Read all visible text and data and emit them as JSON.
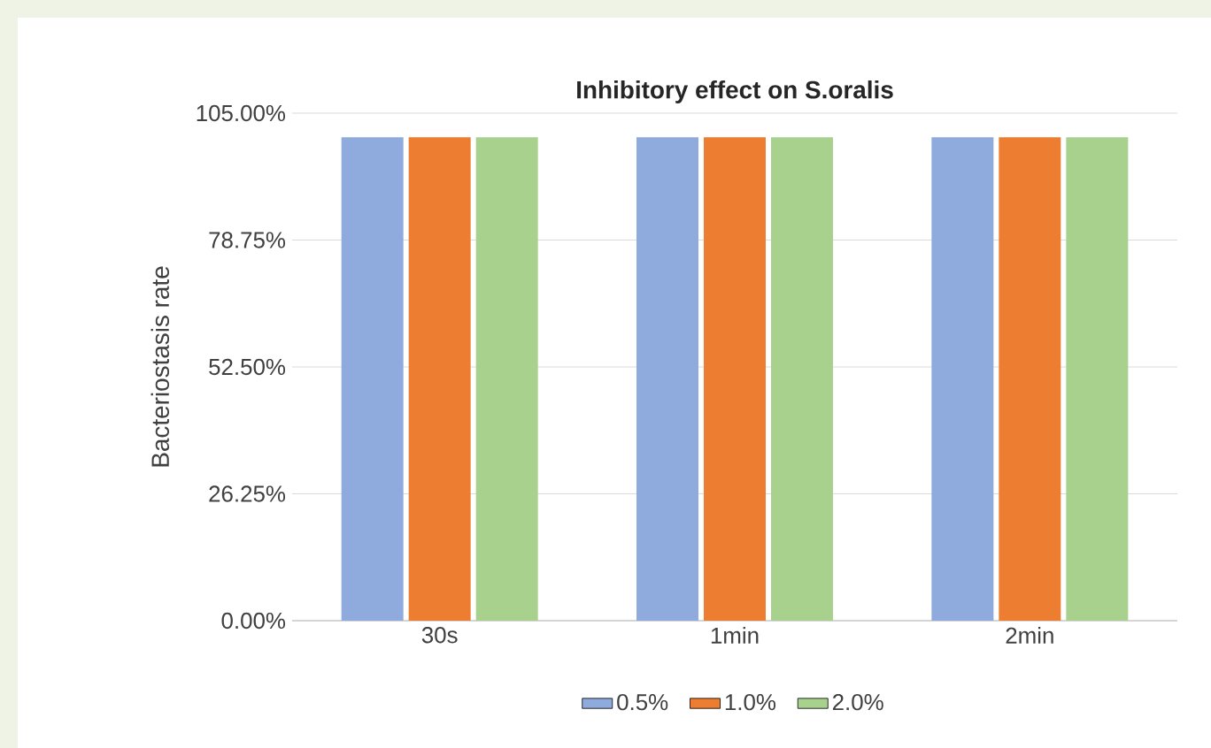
{
  "chart_data": {
    "type": "bar",
    "title": "Inhibitory effect on S.oralis",
    "ylabel": "Bacteriostasis rate",
    "categories": [
      "30s",
      "1min",
      "2min"
    ],
    "series": [
      {
        "name": "0.5%",
        "color": "#8faadc",
        "values": [
          100,
          100,
          100
        ]
      },
      {
        "name": "1.0%",
        "color": "#ed7d31",
        "values": [
          100,
          100,
          100
        ]
      },
      {
        "name": "2.0%",
        "color": "#a9d18e",
        "values": [
          100,
          100,
          100
        ]
      }
    ],
    "ylim": [
      0,
      105
    ],
    "yticks": [
      {
        "value": 0,
        "label": "0.00%"
      },
      {
        "value": 26.25,
        "label": "26.25%"
      },
      {
        "value": 52.5,
        "label": "52.50%"
      },
      {
        "value": 78.75,
        "label": "78.75%"
      },
      {
        "value": 105,
        "label": "105.00%"
      }
    ],
    "grid": "y",
    "legend": "bottom"
  }
}
